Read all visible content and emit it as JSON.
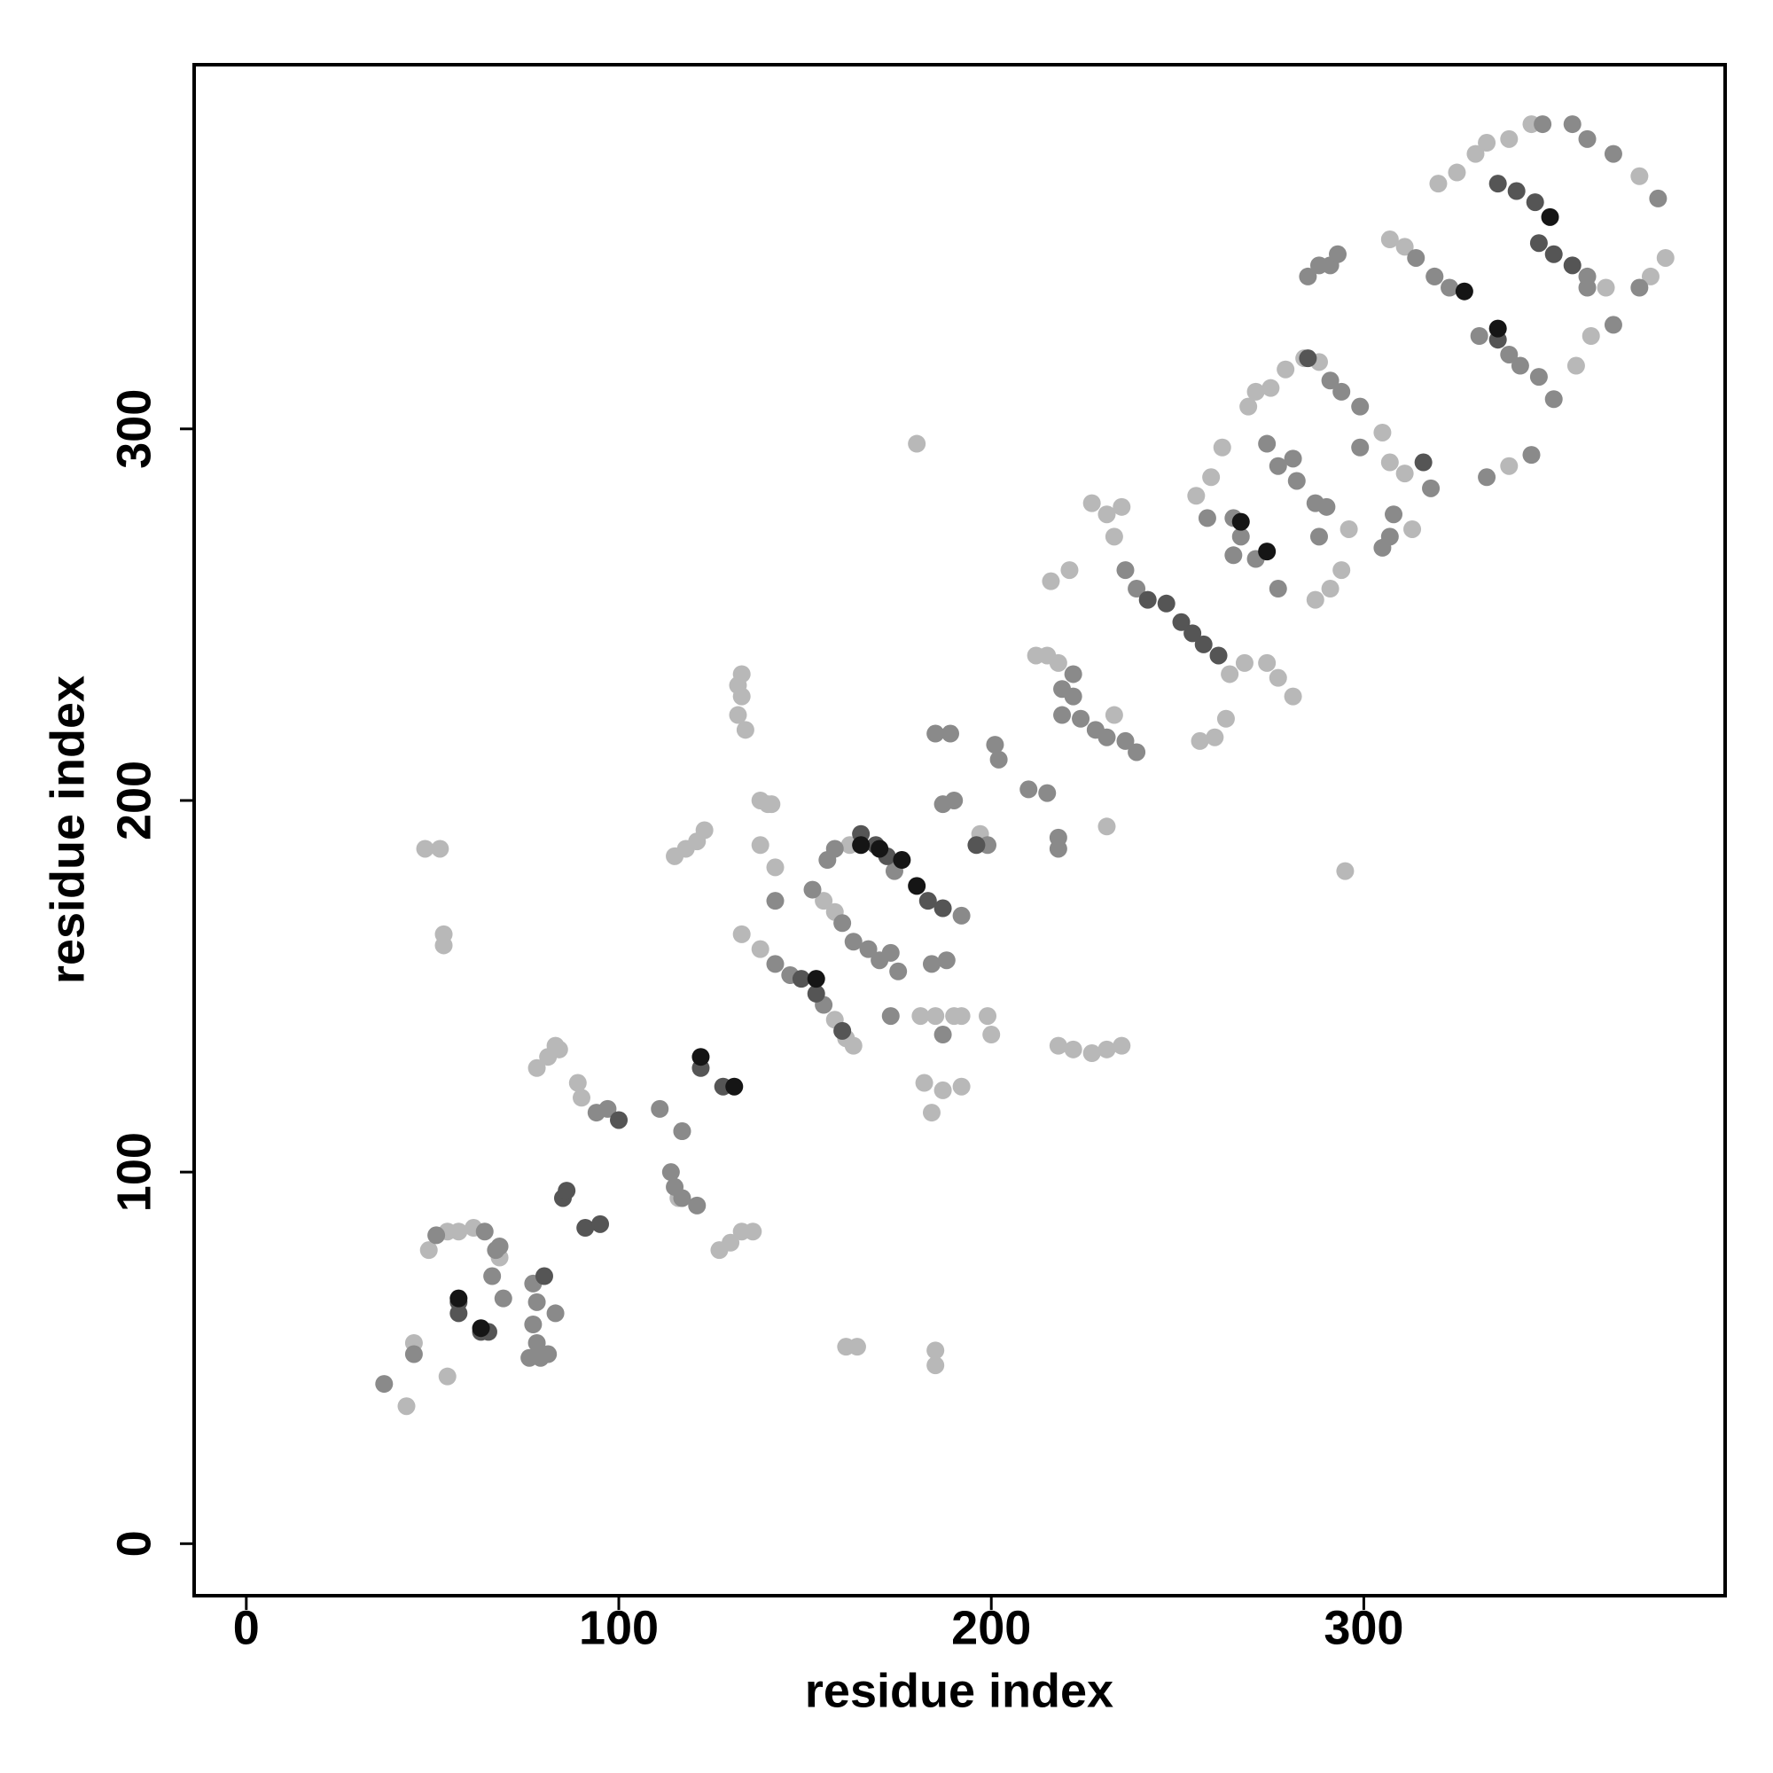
{
  "chart_data": {
    "type": "scatter",
    "x_label": "residue index",
    "y_label": "residue index",
    "xlim": [
      -14,
      397
    ],
    "ylim": [
      -14,
      398
    ],
    "xticks": [
      0,
      100,
      200,
      300
    ],
    "yticks": [
      0,
      100,
      200,
      300
    ],
    "grid": false,
    "series": [
      {
        "color": "#b8b8b8",
        "x": [
          43,
          45,
          54,
          49,
          54,
          57,
          61,
          68,
          78,
          81,
          83,
          84,
          89,
          90,
          116,
          117,
          115,
          118,
          121,
          123,
          127,
          130,
          133,
          136,
          133,
          132,
          133,
          132,
          134,
          138,
          140,
          141,
          138,
          142,
          133,
          138,
          158,
          161,
          163,
          155,
          158,
          162,
          181,
          185,
          190,
          192,
          199,
          200,
          182,
          184,
          187,
          192,
          197,
          218,
          222,
          227,
          231,
          235,
          216,
          221,
          227,
          231,
          235,
          233,
          212,
          215,
          218,
          264,
          268,
          274,
          277,
          281,
          256,
          260,
          263,
          255,
          259,
          262,
          269,
          271,
          275,
          279,
          284,
          288,
          294,
          305,
          307,
          311,
          313,
          319,
          320,
          325,
          330,
          333,
          339,
          345,
          307,
          311,
          365,
          374,
          381,
          377,
          361,
          357,
          48,
          52,
          53,
          53,
          180,
          295,
          161,
          164,
          185,
          185,
          231,
          233,
          287,
          291,
          296,
          339
        ],
        "y": [
          37,
          54,
          45,
          79,
          84,
          84,
          85,
          77,
          128,
          131,
          134,
          133,
          124,
          120,
          93,
          111,
          185,
          187,
          189,
          192,
          79,
          81,
          84,
          84,
          234,
          231,
          228,
          223,
          219,
          200,
          199,
          199,
          188,
          182,
          164,
          160,
          141,
          136,
          134,
          173,
          170,
          188,
          142,
          142,
          142,
          142,
          142,
          137,
          124,
          116,
          122,
          123,
          191,
          134,
          133,
          132,
          133,
          134,
          259,
          262,
          280,
          277,
          279,
          271,
          239,
          239,
          237,
          234,
          237,
          237,
          233,
          228,
          216,
          217,
          222,
          282,
          287,
          295,
          306,
          310,
          311,
          316,
          319,
          318,
          262,
          299,
          291,
          288,
          273,
          341,
          366,
          369,
          374,
          377,
          378,
          382,
          351,
          349,
          338,
          368,
          346,
          341,
          325,
          317,
          187,
          187,
          164,
          161,
          296,
          181,
          53,
          53,
          52,
          48,
          193,
          223,
          254,
          257,
          273,
          290
        ]
      },
      {
        "color": "#8a8a8a",
        "x": [
          37,
          45,
          51,
          64,
          67,
          69,
          77,
          78,
          77,
          78,
          81,
          83,
          76,
          79,
          94,
          97,
          111,
          117,
          114,
          115,
          117,
          121,
          142,
          142,
          146,
          155,
          152,
          160,
          163,
          167,
          170,
          175,
          156,
          158,
          174,
          192,
          173,
          187,
          185,
          189,
          187,
          190,
          199,
          201,
          202,
          210,
          215,
          218,
          218,
          222,
          219,
          222,
          219,
          224,
          228,
          231,
          236,
          239,
          236,
          239,
          258,
          265,
          267,
          271,
          277,
          265,
          274,
          277,
          282,
          281,
          287,
          290,
          288,
          291,
          294,
          299,
          285,
          288,
          291,
          293,
          299,
          308,
          307,
          305,
          318,
          314,
          319,
          323,
          331,
          339,
          342,
          347,
          351,
          333,
          345,
          348,
          356,
          360,
          367,
          379,
          360,
          360,
          367,
          374,
          184,
          188,
          173,
          68,
          66
        ],
        "y": [
          43,
          51,
          83,
          84,
          79,
          66,
          70,
          65,
          59,
          54,
          51,
          62,
          50,
          50,
          116,
          117,
          117,
          111,
          100,
          96,
          93,
          91,
          173,
          156,
          153,
          145,
          176,
          167,
          162,
          160,
          157,
          154,
          184,
          187,
          181,
          169,
          142,
          137,
          218,
          218,
          199,
          200,
          188,
          215,
          211,
          203,
          202,
          190,
          187,
          234,
          230,
          228,
          223,
          222,
          219,
          217,
          216,
          213,
          262,
          257,
          276,
          276,
          271,
          265,
          257,
          266,
          296,
          290,
          286,
          292,
          280,
          279,
          271,
          313,
          310,
          306,
          341,
          344,
          344,
          347,
          295,
          277,
          271,
          268,
          284,
          346,
          341,
          338,
          325,
          320,
          317,
          314,
          308,
          287,
          293,
          382,
          382,
          378,
          374,
          362,
          341,
          338,
          328,
          338,
          156,
          157,
          159,
          80,
          72
        ]
      },
      {
        "color": "#555555",
        "x": [
          85,
          86,
          91,
          95,
          100,
          57,
          57,
          63,
          65,
          80,
          122,
          128,
          149,
          153,
          160,
          165,
          169,
          172,
          183,
          187,
          242,
          247,
          251,
          254,
          257,
          261,
          347,
          351,
          356,
          336,
          341,
          346,
          336,
          285,
          316,
          196
        ],
        "y": [
          93,
          95,
          85,
          86,
          114,
          65,
          62,
          57,
          57,
          72,
          128,
          123,
          152,
          148,
          138,
          191,
          188,
          185,
          173,
          171,
          254,
          253,
          248,
          245,
          242,
          239,
          350,
          347,
          344,
          366,
          364,
          361,
          324,
          319,
          291,
          188
        ]
      },
      {
        "color": "#151515",
        "x": [
          122,
          131,
          153,
          165,
          170,
          176,
          180,
          267,
          274,
          327,
          336,
          350,
          57,
          63
        ],
        "y": [
          131,
          123,
          152,
          188,
          187,
          184,
          177,
          275,
          267,
          337,
          327,
          357,
          66,
          58
        ]
      }
    ]
  }
}
